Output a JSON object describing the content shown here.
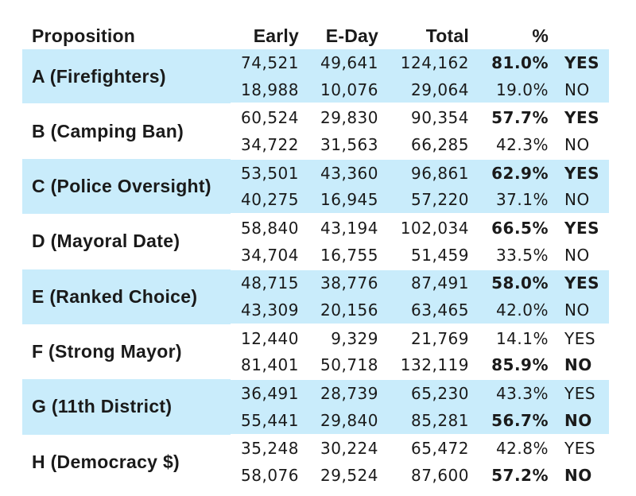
{
  "chart_data": {
    "type": "table",
    "columns": [
      "Proposition",
      "Early",
      "E-Day",
      "Total",
      "%"
    ],
    "rows": [
      {
        "proposition": "A (Firefighters)",
        "shaded": true,
        "lines": [
          {
            "early": "74,521",
            "eday": "49,641",
            "total": "124,162",
            "pct": "81.0%",
            "result": "YES",
            "bold": true
          },
          {
            "early": "18,988",
            "eday": "10,076",
            "total": "29,064",
            "pct": "19.0%",
            "result": "NO",
            "bold": false
          }
        ]
      },
      {
        "proposition": "B (Camping Ban)",
        "shaded": false,
        "lines": [
          {
            "early": "60,524",
            "eday": "29,830",
            "total": "90,354",
            "pct": "57.7%",
            "result": "YES",
            "bold": true
          },
          {
            "early": "34,722",
            "eday": "31,563",
            "total": "66,285",
            "pct": "42.3%",
            "result": "NO",
            "bold": false
          }
        ]
      },
      {
        "proposition": "C (Police Oversight)",
        "shaded": true,
        "lines": [
          {
            "early": "53,501",
            "eday": "43,360",
            "total": "96,861",
            "pct": "62.9%",
            "result": "YES",
            "bold": true
          },
          {
            "early": "40,275",
            "eday": "16,945",
            "total": "57,220",
            "pct": "37.1%",
            "result": "NO",
            "bold": false
          }
        ]
      },
      {
        "proposition": "D (Mayoral Date)",
        "shaded": false,
        "lines": [
          {
            "early": "58,840",
            "eday": "43,194",
            "total": "102,034",
            "pct": "66.5%",
            "result": "YES",
            "bold": true
          },
          {
            "early": "34,704",
            "eday": "16,755",
            "total": "51,459",
            "pct": "33.5%",
            "result": "NO",
            "bold": false
          }
        ]
      },
      {
        "proposition": "E (Ranked Choice)",
        "shaded": true,
        "lines": [
          {
            "early": "48,715",
            "eday": "38,776",
            "total": "87,491",
            "pct": "58.0%",
            "result": "YES",
            "bold": true
          },
          {
            "early": "43,309",
            "eday": "20,156",
            "total": "63,465",
            "pct": "42.0%",
            "result": "NO",
            "bold": false
          }
        ]
      },
      {
        "proposition": "F (Strong Mayor)",
        "shaded": false,
        "lines": [
          {
            "early": "12,440",
            "eday": "9,329",
            "total": "21,769",
            "pct": "14.1%",
            "result": "YES",
            "bold": false
          },
          {
            "early": "81,401",
            "eday": "50,718",
            "total": "132,119",
            "pct": "85.9%",
            "result": "NO",
            "bold": true
          }
        ]
      },
      {
        "proposition": "G (11th District)",
        "shaded": true,
        "lines": [
          {
            "early": "36,491",
            "eday": "28,739",
            "total": "65,230",
            "pct": "43.3%",
            "result": "YES",
            "bold": false
          },
          {
            "early": "55,441",
            "eday": "29,840",
            "total": "85,281",
            "pct": "56.7%",
            "result": "NO",
            "bold": true
          }
        ]
      },
      {
        "proposition": "H (Democracy $)",
        "shaded": false,
        "lines": [
          {
            "early": "35,248",
            "eday": "30,224",
            "total": "65,472",
            "pct": "42.8%",
            "result": "YES",
            "bold": false
          },
          {
            "early": "58,076",
            "eday": "29,524",
            "total": "87,600",
            "pct": "57.2%",
            "result": "NO",
            "bold": true
          }
        ]
      }
    ]
  },
  "colors": {
    "shade": "#c9ecfb",
    "text": "#1a1a1a"
  }
}
